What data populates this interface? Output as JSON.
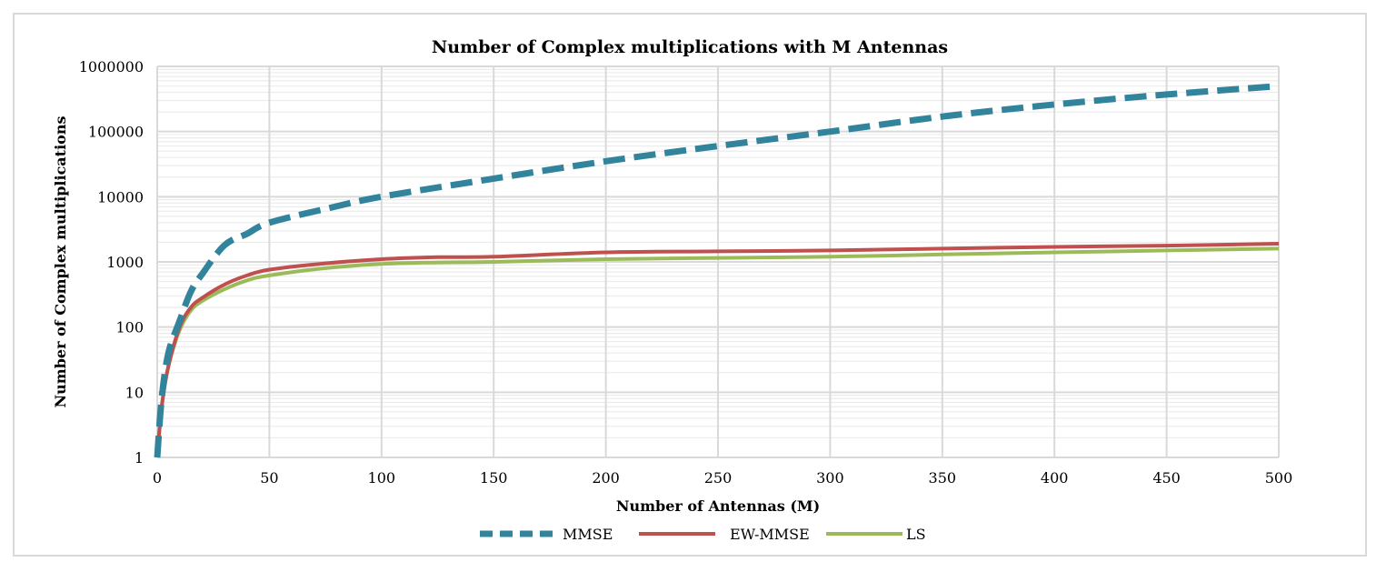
{
  "chart_data": {
    "type": "line",
    "title": "Number of Complex multiplications with M Antennas",
    "xlabel": "Number of Antennas (M)",
    "ylabel": "Number of Complex multiplications",
    "xlim": [
      0,
      500
    ],
    "ylim": [
      1,
      1000000
    ],
    "y_scale": "log",
    "x_ticks": [
      "0",
      "50",
      "100",
      "150",
      "200",
      "250",
      "300",
      "350",
      "400",
      "450",
      "500"
    ],
    "y_ticks": [
      "1",
      "10",
      "100",
      "1000",
      "10000",
      "100000",
      "1000000"
    ],
    "grid": true,
    "legend_position": "bottom",
    "series": [
      {
        "name": "MMSE",
        "color": "#31849b",
        "style": "dashed",
        "x": [
          0,
          2,
          5,
          10,
          15,
          20,
          30,
          40,
          50,
          75,
          100,
          150,
          200,
          250,
          300,
          350,
          400,
          450,
          500
        ],
        "y": [
          1,
          8,
          40,
          125,
          350,
          650,
          1800,
          2700,
          4000,
          6500,
          10000,
          19000,
          35000,
          60000,
          100000,
          170000,
          260000,
          370000,
          500000
        ]
      },
      {
        "name": "EW-MMSE",
        "color": "#c0504d",
        "style": "solid",
        "x": [
          0,
          2,
          5,
          10,
          15,
          20,
          30,
          40,
          50,
          75,
          100,
          125,
          150,
          200,
          250,
          300,
          350,
          400,
          450,
          500
        ],
        "y": [
          1,
          6,
          25,
          100,
          200,
          280,
          450,
          620,
          760,
          950,
          1100,
          1180,
          1200,
          1400,
          1450,
          1500,
          1600,
          1700,
          1780,
          1900
        ]
      },
      {
        "name": "LS",
        "color": "#9bbb59",
        "style": "solid",
        "x": [
          0,
          2,
          5,
          10,
          15,
          20,
          30,
          40,
          50,
          75,
          100,
          125,
          150,
          200,
          250,
          300,
          350,
          400,
          450,
          500
        ],
        "y": [
          1,
          6,
          25,
          90,
          180,
          250,
          380,
          520,
          620,
          800,
          930,
          980,
          1000,
          1100,
          1150,
          1200,
          1300,
          1400,
          1500,
          1600
        ]
      }
    ]
  }
}
